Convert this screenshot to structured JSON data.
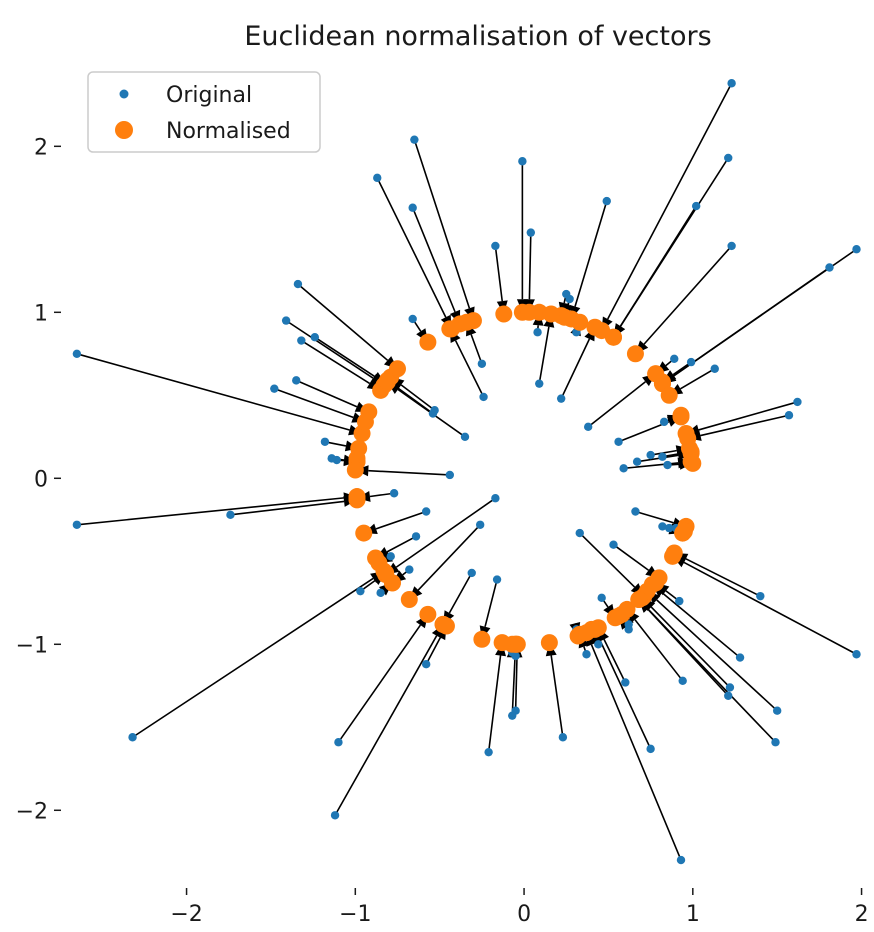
{
  "chart_data": {
    "type": "scatter",
    "title": "Euclidean normalisation of vectors",
    "xlabel": "",
    "ylabel": "",
    "xlim": [
      -2.75,
      2.05
    ],
    "ylim": [
      -2.42,
      2.52
    ],
    "x_ticks": [
      -2,
      -1,
      0,
      1,
      2
    ],
    "x_tick_labels": [
      "−2",
      "−1",
      "0",
      "1",
      "2"
    ],
    "y_ticks": [
      2,
      1,
      0,
      -1,
      -2
    ],
    "y_tick_labels": [
      "2",
      "1",
      "0",
      "−1",
      "−2"
    ],
    "grid": false,
    "legend_position": "top-left",
    "colors": {
      "original": "#1f77b4",
      "normalised": "#ff7f0e",
      "arrow": "#000000",
      "legend_border": "#cccccc"
    },
    "series": [
      {
        "name": "Original",
        "points": [
          [
            1.23,
            2.38
          ],
          [
            -0.65,
            2.04
          ],
          [
            1.21,
            1.93
          ],
          [
            -0.01,
            1.91
          ],
          [
            -0.87,
            1.81
          ],
          [
            0.49,
            1.67
          ],
          [
            -0.66,
            1.63
          ],
          [
            1.02,
            1.64
          ],
          [
            0.04,
            1.48
          ],
          [
            -0.17,
            1.4
          ],
          [
            1.23,
            1.4
          ],
          [
            1.97,
            1.38
          ],
          [
            1.81,
            1.27
          ],
          [
            -1.34,
            1.17
          ],
          [
            0.25,
            1.11
          ],
          [
            0.27,
            1.08
          ],
          [
            -1.41,
            0.95
          ],
          [
            -0.66,
            0.96
          ],
          [
            -1.24,
            0.85
          ],
          [
            -1.32,
            0.83
          ],
          [
            0.08,
            0.88
          ],
          [
            0.31,
            0.88
          ],
          [
            -2.65,
            0.75
          ],
          [
            0.89,
            0.72
          ],
          [
            0.99,
            0.7
          ],
          [
            -0.25,
            0.69
          ],
          [
            1.13,
            0.66
          ],
          [
            -1.35,
            0.59
          ],
          [
            0.09,
            0.57
          ],
          [
            -1.48,
            0.54
          ],
          [
            -0.24,
            0.49
          ],
          [
            0.22,
            0.48
          ],
          [
            1.62,
            0.46
          ],
          [
            -0.53,
            0.41
          ],
          [
            -0.54,
            0.39
          ],
          [
            1.57,
            0.38
          ],
          [
            0.83,
            0.34
          ],
          [
            0.38,
            0.31
          ],
          [
            -0.35,
            0.25
          ],
          [
            0.56,
            0.22
          ],
          [
            -1.18,
            0.22
          ],
          [
            -1.11,
            0.11
          ],
          [
            0.75,
            0.14
          ],
          [
            0.82,
            0.13
          ],
          [
            -1.14,
            0.12
          ],
          [
            -0.99,
            0.12
          ],
          [
            0.67,
            0.1
          ],
          [
            0.85,
            0.08
          ],
          [
            0.59,
            0.06
          ],
          [
            -0.44,
            0.02
          ],
          [
            -0.77,
            -0.09
          ],
          [
            -0.17,
            -0.12
          ],
          [
            -1.74,
            -0.22
          ],
          [
            -0.58,
            -0.2
          ],
          [
            -2.65,
            -0.28
          ],
          [
            0.66,
            -0.2
          ],
          [
            0.82,
            -0.29
          ],
          [
            0.86,
            -0.3
          ],
          [
            0.9,
            -0.3
          ],
          [
            -0.26,
            -0.28
          ],
          [
            0.33,
            -0.33
          ],
          [
            -0.64,
            -0.35
          ],
          [
            0.53,
            -0.4
          ],
          [
            -0.79,
            -0.47
          ],
          [
            -0.68,
            -0.55
          ],
          [
            -0.31,
            -0.57
          ],
          [
            -0.16,
            -0.61
          ],
          [
            -0.97,
            -0.68
          ],
          [
            1.4,
            -0.71
          ],
          [
            -0.85,
            -0.69
          ],
          [
            0.46,
            -0.72
          ],
          [
            0.92,
            -0.74
          ],
          [
            0.62,
            -0.88
          ],
          [
            0.62,
            -0.91
          ],
          [
            0.31,
            -0.91
          ],
          [
            0.44,
            -1.0
          ],
          [
            -0.07,
            -1.05
          ],
          [
            0.37,
            -1.06
          ],
          [
            1.97,
            -1.06
          ],
          [
            -0.05,
            -1.07
          ],
          [
            1.28,
            -1.08
          ],
          [
            -0.58,
            -1.12
          ],
          [
            0.6,
            -1.23
          ],
          [
            0.94,
            -1.22
          ],
          [
            1.22,
            -1.26
          ],
          [
            1.21,
            -1.31
          ],
          [
            -0.05,
            -1.4
          ],
          [
            1.5,
            -1.4
          ],
          [
            -0.07,
            -1.43
          ],
          [
            0.23,
            -1.56
          ],
          [
            -2.32,
            -1.56
          ],
          [
            1.49,
            -1.59
          ],
          [
            -1.1,
            -1.59
          ],
          [
            0.75,
            -1.63
          ],
          [
            -0.21,
            -1.65
          ],
          [
            -1.12,
            -2.03
          ],
          [
            0.93,
            -2.3
          ]
        ]
      },
      {
        "name": "Normalised",
        "points": [
          [
            0.46,
            0.89
          ],
          [
            -0.3,
            0.95
          ],
          [
            0.53,
            0.85
          ],
          [
            -0.01,
            1.0
          ],
          [
            -0.43,
            0.9
          ],
          [
            0.28,
            0.96
          ],
          [
            -0.38,
            0.93
          ],
          [
            0.53,
            0.85
          ],
          [
            0.03,
            1.0
          ],
          [
            -0.12,
            0.99
          ],
          [
            0.66,
            0.75
          ],
          [
            0.82,
            0.57
          ],
          [
            0.82,
            0.57
          ],
          [
            -0.75,
            0.66
          ],
          [
            0.22,
            0.98
          ],
          [
            0.24,
            0.97
          ],
          [
            -0.83,
            0.56
          ],
          [
            -0.57,
            0.82
          ],
          [
            -0.82,
            0.57
          ],
          [
            -0.85,
            0.53
          ],
          [
            0.09,
            1.0
          ],
          [
            0.33,
            0.94
          ],
          [
            -0.96,
            0.27
          ],
          [
            0.78,
            0.63
          ],
          [
            0.82,
            0.58
          ],
          [
            -0.34,
            0.94
          ],
          [
            0.86,
            0.5
          ],
          [
            -0.92,
            0.4
          ],
          [
            0.16,
            0.99
          ],
          [
            -0.94,
            0.34
          ],
          [
            -0.44,
            0.9
          ],
          [
            0.42,
            0.91
          ],
          [
            0.96,
            0.27
          ],
          [
            -0.79,
            0.61
          ],
          [
            -0.81,
            0.59
          ],
          [
            0.97,
            0.24
          ],
          [
            0.93,
            0.38
          ],
          [
            0.78,
            0.63
          ],
          [
            -0.81,
            0.58
          ],
          [
            0.93,
            0.37
          ],
          [
            -0.98,
            0.18
          ],
          [
            -0.99,
            0.1
          ],
          [
            0.98,
            0.18
          ],
          [
            0.99,
            0.16
          ],
          [
            -0.99,
            0.1
          ],
          [
            -0.99,
            0.12
          ],
          [
            0.99,
            0.15
          ],
          [
            1.0,
            0.09
          ],
          [
            0.99,
            0.1
          ],
          [
            -1.0,
            0.05
          ],
          [
            -0.99,
            -0.12
          ],
          [
            -0.82,
            -0.58
          ],
          [
            -0.99,
            -0.13
          ],
          [
            -0.95,
            -0.33
          ],
          [
            -0.99,
            -0.11
          ],
          [
            0.96,
            -0.29
          ],
          [
            0.94,
            -0.33
          ],
          [
            0.94,
            -0.33
          ],
          [
            0.95,
            -0.32
          ],
          [
            -0.68,
            -0.73
          ],
          [
            0.71,
            -0.71
          ],
          [
            -0.88,
            -0.48
          ],
          [
            0.8,
            -0.6
          ],
          [
            -0.86,
            -0.51
          ],
          [
            -0.78,
            -0.63
          ],
          [
            -0.48,
            -0.88
          ],
          [
            -0.25,
            -0.97
          ],
          [
            -0.82,
            -0.57
          ],
          [
            0.89,
            -0.45
          ],
          [
            -0.78,
            -0.63
          ],
          [
            0.54,
            -0.84
          ],
          [
            0.78,
            -0.63
          ],
          [
            0.58,
            -0.82
          ],
          [
            0.56,
            -0.83
          ],
          [
            0.32,
            -0.95
          ],
          [
            0.4,
            -0.91
          ],
          [
            -0.07,
            -1.0
          ],
          [
            0.33,
            -0.94
          ],
          [
            0.88,
            -0.47
          ],
          [
            -0.05,
            -1.0
          ],
          [
            0.76,
            -0.64
          ],
          [
            -0.46,
            -0.89
          ],
          [
            0.44,
            -0.9
          ],
          [
            0.61,
            -0.79
          ],
          [
            0.7,
            -0.72
          ],
          [
            0.68,
            -0.73
          ],
          [
            -0.04,
            -1.0
          ],
          [
            0.73,
            -0.68
          ],
          [
            -0.05,
            -1.0
          ],
          [
            0.15,
            -0.99
          ],
          [
            -0.83,
            -0.56
          ],
          [
            0.68,
            -0.73
          ],
          [
            -0.57,
            -0.82
          ],
          [
            0.42,
            -0.91
          ],
          [
            -0.13,
            -0.99
          ],
          [
            -0.48,
            -0.88
          ],
          [
            0.37,
            -0.93
          ]
        ]
      }
    ]
  }
}
